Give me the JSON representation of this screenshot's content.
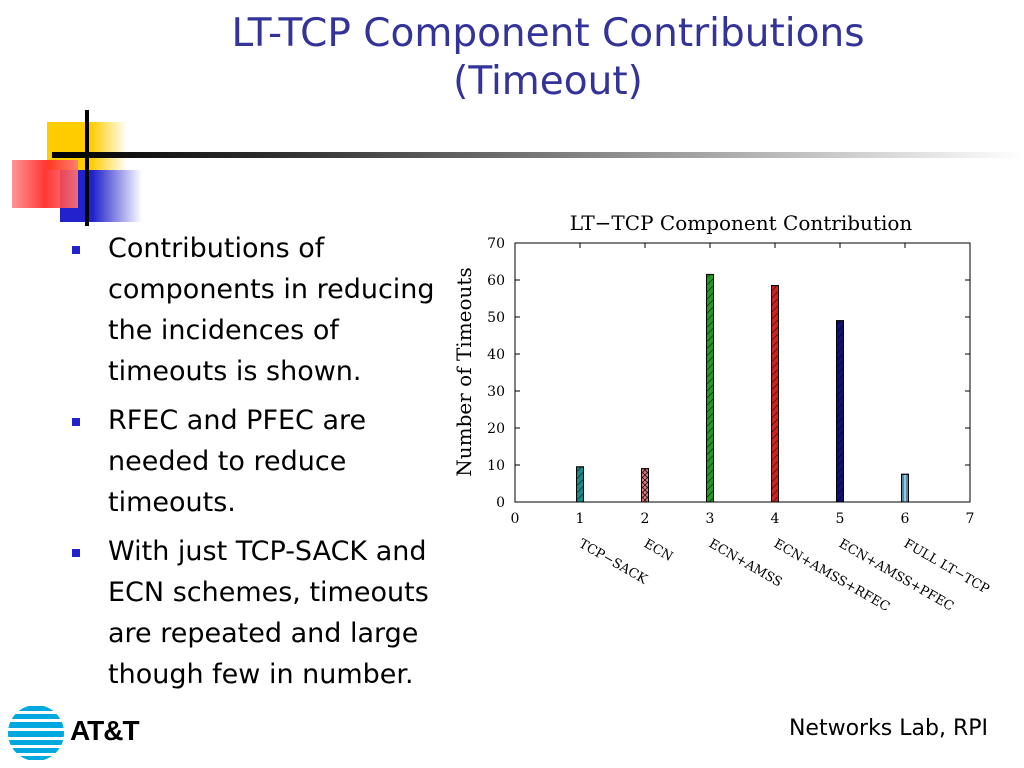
{
  "slide": {
    "title_line1": "LT-TCP Component Contributions",
    "title_line2": "(Timeout)",
    "footer": "Networks Lab, RPI",
    "logo_text": "AT&T"
  },
  "bullets": [
    {
      "lines": [
        "Contributions of",
        "components in reducing",
        "the incidences of",
        "timeouts is shown."
      ]
    },
    {
      "lines": [
        "RFEC and PFEC are",
        "needed to reduce",
        "timeouts."
      ]
    },
    {
      "lines": [
        "With just TCP-SACK and",
        "ECN schemes, timeouts",
        "are repeated and large",
        "though few in number."
      ]
    }
  ],
  "colors": {
    "title": "#333399",
    "bullet": "#2222cc"
  },
  "chart_data": {
    "type": "bar",
    "title": "LT−TCP Component Contribution",
    "ylabel": "Number of Timeouts",
    "xlabel": "",
    "xlim": [
      0,
      7
    ],
    "ylim": [
      0,
      70
    ],
    "xticks": [
      "0",
      "1",
      "2",
      "3",
      "4",
      "5",
      "6",
      "7"
    ],
    "yticks": [
      "0",
      "10",
      "20",
      "30",
      "40",
      "50",
      "60",
      "70"
    ],
    "x": [
      1,
      2,
      3,
      4,
      5,
      6
    ],
    "values": [
      9.5,
      9,
      61.5,
      58.5,
      49,
      7.5
    ],
    "categories": [
      "TCP−SACK",
      "ECN",
      "ECN+AMSS",
      "ECN+AMSS+RFEC",
      "ECN+AMSS+PFEC",
      "FULL LT−TCP"
    ],
    "bar_colors": [
      "#1a8a8a",
      "#e07a7a",
      "#229922",
      "#cc2222",
      "#11117a",
      "#88ccee"
    ],
    "grid": false,
    "legend": "none"
  }
}
